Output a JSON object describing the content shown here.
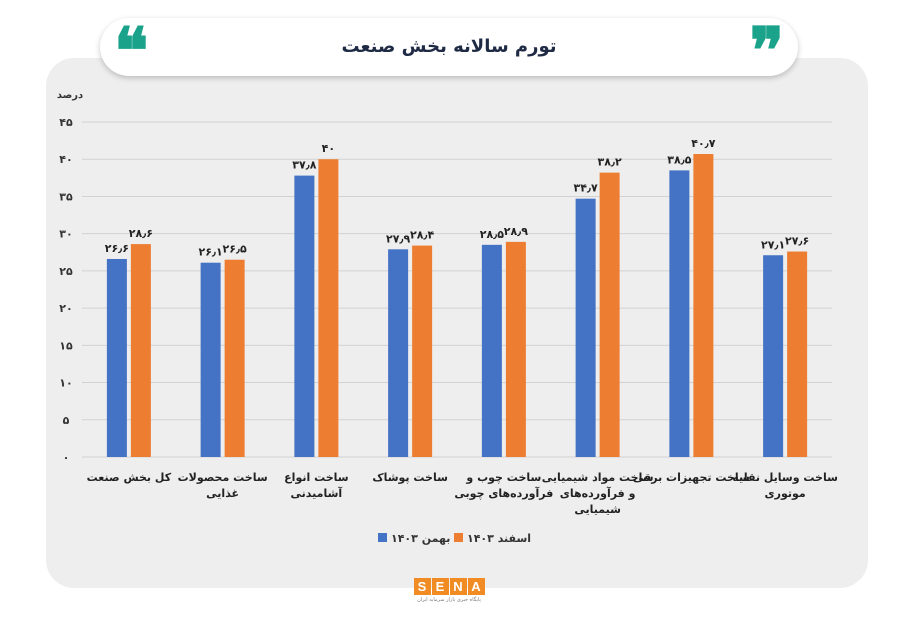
{
  "header": {
    "title": "تورم سالانه بخش صنعت"
  },
  "logo": {
    "text": "SENA",
    "subtitle": "پایگاه خبری بازار سرمایه ایران"
  },
  "colors": {
    "accent_teal": "#1aa38a",
    "series_blue": "#4472c4",
    "series_orange": "#ed7d31"
  },
  "chart_data": {
    "type": "bar",
    "title": "تورم سالانه بخش صنعت",
    "ylabel": "درصد",
    "ylim": [
      0,
      45
    ],
    "yticks": [
      "۰",
      "۵",
      "۱۰",
      "۱۵",
      "۲۰",
      "۲۵",
      "۳۰",
      "۳۵",
      "۴۰",
      "۴۵"
    ],
    "grid": true,
    "legend_position": "bottom",
    "categories": [
      "کل بخش صنعت",
      "ساخت محصولات غذایی",
      "ساخت انواع آشامیدنی",
      "ساخت پوشاک",
      "ساخت چوب و فرآورده‌های چوبی",
      "ساخت مواد شیمیایی و فرآورده‌های شیمیایی",
      "ساخت تجهیزات برقی",
      "ساخت وسایل نقلیه موتوری"
    ],
    "category_lines": [
      [
        "کل بخش صنعت"
      ],
      [
        "ساخت محصولات",
        "غذایی"
      ],
      [
        "ساخت انواع",
        "آشامیدنی"
      ],
      [
        "ساخت پوشاک"
      ],
      [
        "ساخت چوب و",
        "فرآورده‌های چوبی"
      ],
      [
        "ساخت مواد شیمیایی",
        "و فرآورده‌های",
        "شیمیایی"
      ],
      [
        "ساخت تجهیزات برقی"
      ],
      [
        "ساخت وسایل نقلیه",
        "موتوری"
      ]
    ],
    "series": [
      {
        "name": "بهمن ۱۴۰۳",
        "color": "#4472c4",
        "values": [
          26.6,
          26.1,
          37.8,
          27.9,
          28.5,
          34.7,
          38.5,
          27.1
        ],
        "labels": [
          "۲۶٫۶",
          "۲۶٫۱",
          "۳۷٫۸",
          "۲۷٫۹",
          "۲۸٫۵",
          "۳۴٫۷",
          "۳۸٫۵",
          "۲۷٫۱"
        ]
      },
      {
        "name": "اسفند ۱۴۰۳",
        "color": "#ed7d31",
        "values": [
          28.6,
          26.5,
          40,
          28.4,
          28.9,
          38.2,
          40.7,
          27.6
        ],
        "labels": [
          "۲۸٫۶",
          "۲۶٫۵",
          "۴۰",
          "۲۸٫۴",
          "۲۸٫۹",
          "۳۸٫۲",
          "۴۰٫۷",
          "۲۷٫۶"
        ]
      }
    ]
  }
}
